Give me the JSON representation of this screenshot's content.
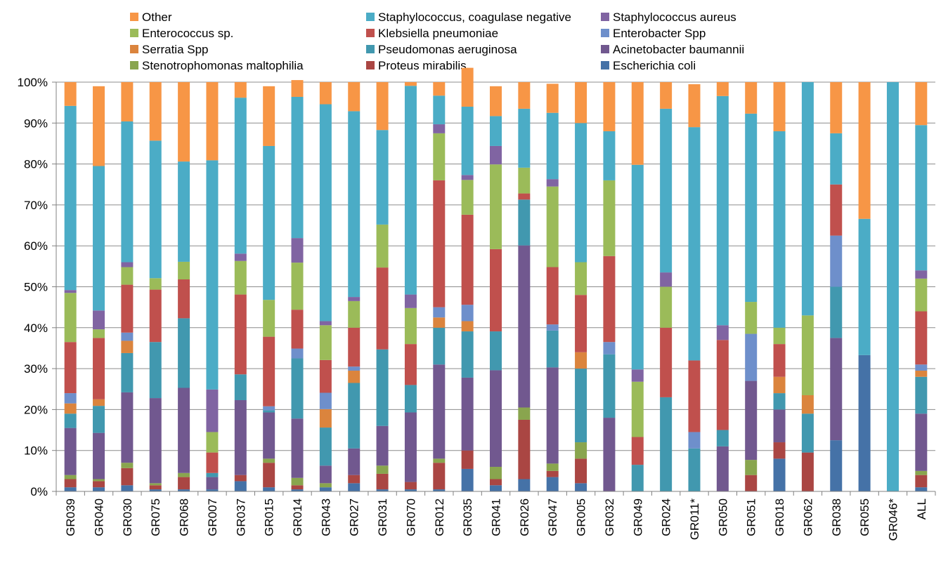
{
  "colors": {
    "Escherichia coli": "#4572A7",
    "Proteus mirabilis": "#AA4643",
    "Stenotrophomonas maltophilia": "#89A54E",
    "Acinetobacter baumannii": "#71588F",
    "Pseudomonas aeruginosa": "#4198AF",
    "Serratia Spp": "#DB843D",
    "Enterobacter Spp": "#6E8FCB",
    "Klebsiella pneumoniae": "#C0504D",
    "Enterococcus sp.": "#9BBB59",
    "Staphylococcus aureus": "#8064A2",
    "Staphylococcus, coagulase negative": "#4BACC6",
    "Other": "#F79646",
    "grid": "#8C8C8C",
    "axis": "#808080"
  },
  "chart_data": {
    "type": "bar",
    "stacked": true,
    "percent": true,
    "title": "",
    "xlabel": "",
    "ylabel": "",
    "ylim": [
      0,
      100
    ],
    "yticks": [
      "0%",
      "10%",
      "20%",
      "30%",
      "40%",
      "50%",
      "60%",
      "70%",
      "80%",
      "90%",
      "100%"
    ],
    "grid": true,
    "legend_position": "top",
    "legend_order": [
      "Other",
      "Staphylococcus, coagulase negative",
      "Staphylococcus aureus",
      "Enterococcus sp.",
      "Klebsiella pneumoniae",
      "Enterobacter Spp",
      "Serratia Spp",
      "Pseudomonas aeruginosa",
      "Acinetobacter baumannii",
      "Stenotrophomonas maltophilia",
      "Proteus mirabilis",
      "Escherichia coli"
    ],
    "categories": [
      "GR039",
      "GR040",
      "GR030",
      "GR075",
      "GR068",
      "GR007",
      "GR037",
      "GR015",
      "GR014",
      "GR043",
      "GR027",
      "GR031",
      "GR070",
      "GR012",
      "GR035",
      "GR041",
      "GR026",
      "GR047",
      "GR005",
      "GR032",
      "GR049",
      "GR024",
      "GR011*",
      "GR050",
      "GR051",
      "GR018",
      "GR062",
      "GR038",
      "GR055",
      "GR046*",
      "ALL"
    ],
    "series": [
      {
        "name": "Escherichia coli",
        "values": [
          1,
          1,
          1.5,
          0.5,
          0.5,
          0.5,
          2.5,
          1,
          0.5,
          1,
          2,
          0.5,
          0.5,
          0.5,
          5.5,
          1.5,
          3,
          3.5,
          2,
          0,
          0,
          0,
          0,
          0,
          0,
          8,
          0,
          12.5,
          33.3,
          0,
          1
        ]
      },
      {
        "name": "Proteus mirabilis",
        "values": [
          2,
          1.5,
          4.2,
          1,
          3,
          0,
          1.5,
          6,
          1,
          0,
          2,
          3.8,
          1.8,
          6.5,
          4.5,
          1.5,
          14.5,
          1.5,
          6,
          0,
          0,
          0,
          0,
          0,
          4,
          4,
          9.5,
          0,
          0,
          0,
          3
        ]
      },
      {
        "name": "Stenotrophomonas maltophilia",
        "values": [
          1,
          0.5,
          1.3,
          0.5,
          1,
          0,
          0,
          1,
          1.8,
          1,
          0,
          2,
          0,
          1,
          0,
          3,
          3,
          1.8,
          4,
          0,
          0,
          0,
          0,
          0,
          3.7,
          0,
          0,
          0,
          0,
          0,
          1
        ]
      },
      {
        "name": "Acinetobacter baumannii",
        "values": [
          11.5,
          11.3,
          17.2,
          20.8,
          20.8,
          3,
          18.3,
          11.3,
          14.5,
          4.3,
          6.5,
          9.7,
          17,
          23,
          17.8,
          23.6,
          39.6,
          23.5,
          0,
          18,
          0,
          0,
          0,
          11,
          19.3,
          8,
          0,
          25,
          0,
          0,
          14
        ]
      },
      {
        "name": "Pseudomonas aeruginosa",
        "values": [
          3.5,
          6.6,
          9.6,
          13.7,
          17,
          1,
          6.3,
          0.5,
          14.7,
          9.3,
          16,
          18.7,
          6.7,
          9,
          11.3,
          9.5,
          11.2,
          9,
          18,
          15.5,
          6.5,
          23,
          10.5,
          4,
          0,
          4,
          9.5,
          12.5,
          0,
          0,
          9
        ]
      },
      {
        "name": "Serratia Spp",
        "values": [
          2.5,
          1.6,
          3,
          0,
          0,
          0,
          0,
          0,
          0,
          4.5,
          3,
          0,
          0,
          2.5,
          2.5,
          0,
          0,
          0,
          4,
          0,
          0,
          0,
          0,
          0,
          0,
          4,
          4.5,
          0,
          0,
          0,
          1.5
        ]
      },
      {
        "name": "Enterobacter Spp",
        "values": [
          2.5,
          0,
          2,
          0,
          0,
          0,
          0,
          1,
          2.4,
          4,
          1,
          0,
          0,
          2.5,
          4,
          0,
          0,
          1.5,
          0,
          3,
          0,
          0,
          4,
          0,
          11.5,
          0,
          0,
          12.5,
          0,
          0,
          1.5
        ]
      },
      {
        "name": "Klebsiella pneumoniae",
        "values": [
          12.5,
          15,
          11.7,
          12.8,
          9.5,
          5,
          19.5,
          17,
          9.5,
          8,
          9.5,
          20,
          10,
          31,
          22,
          20.1,
          1.5,
          14,
          14,
          21,
          6.8,
          17,
          17.5,
          22,
          0,
          8,
          0,
          12.5,
          0,
          0,
          13
        ]
      },
      {
        "name": "Enterococcus sp.",
        "values": [
          12,
          2.1,
          4.3,
          2.8,
          4.3,
          5,
          8.2,
          9,
          11.5,
          8.5,
          6.5,
          10.5,
          8.8,
          11.5,
          8.5,
          20.7,
          6.3,
          19.7,
          8,
          18.5,
          13.5,
          10,
          0,
          0,
          7.8,
          4,
          19.5,
          0,
          0,
          0,
          8
        ]
      },
      {
        "name": "Staphylococcus aureus",
        "values": [
          0.7,
          4.6,
          1.2,
          0,
          0,
          10.4,
          1.8,
          0,
          6,
          1,
          1,
          0,
          3.3,
          2.2,
          1.2,
          4.5,
          0,
          1.8,
          0,
          0,
          3,
          3.5,
          0,
          3.6,
          0,
          0,
          0,
          0,
          0,
          0,
          2
        ]
      },
      {
        "name": "Staphylococcus, coagulase negative",
        "values": [
          45,
          35.3,
          34.4,
          33.6,
          24.5,
          56,
          38.1,
          37.6,
          34.5,
          53,
          45.4,
          23.1,
          51,
          7,
          16.7,
          7.3,
          14.4,
          16.2,
          34,
          12,
          50,
          40,
          57,
          56,
          46,
          48,
          57,
          12.5,
          33.3,
          100,
          35.5
        ]
      },
      {
        "name": "Other",
        "values": [
          5.8,
          19.5,
          9.6,
          14.3,
          19.4,
          19.1,
          3.8,
          14.6,
          4.1,
          5.4,
          7.1,
          11.7,
          0.9,
          3.3,
          9.5,
          7.3,
          6.5,
          7.1,
          10,
          12,
          20.2,
          6.5,
          10.5,
          3.4,
          7.7,
          12,
          0,
          12.5,
          33.4,
          0,
          10.5
        ]
      }
    ]
  }
}
